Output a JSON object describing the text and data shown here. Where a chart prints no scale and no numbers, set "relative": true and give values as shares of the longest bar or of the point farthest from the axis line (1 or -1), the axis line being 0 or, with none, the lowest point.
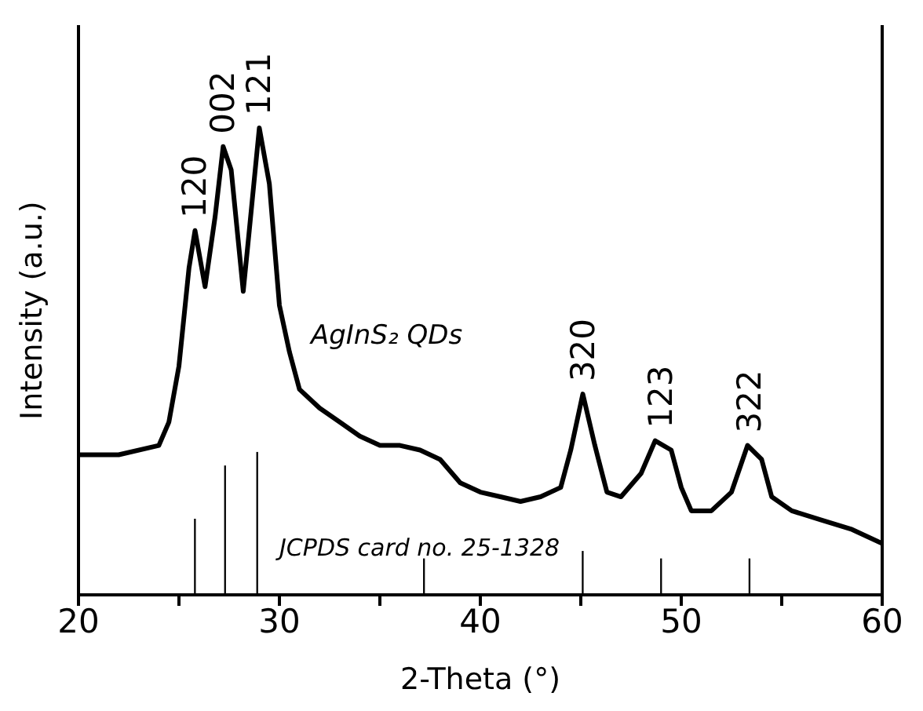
{
  "chart_data": {
    "type": "line",
    "relative": true,
    "xlabel": "2-Theta (°)",
    "ylabel": "Intensity (a.u.)",
    "xlim": [
      20,
      60
    ],
    "xticks": [
      20,
      {
        "value": 25,
        "label": null
      },
      30,
      {
        "value": 35,
        "label": null
      },
      40,
      {
        "value": 45,
        "label": null
      },
      50,
      {
        "value": 55,
        "label": null
      },
      60
    ],
    "tick_labels": "x",
    "series": [
      {
        "name": "AgInS₂ QDs",
        "color": "#000000",
        "x": [
          20,
          22,
          24,
          24.5,
          25,
          25.5,
          25.8,
          26.3,
          26.8,
          27.2,
          27.6,
          28.2,
          28.5,
          29,
          29.5,
          30,
          30.5,
          31,
          32,
          33,
          34,
          35,
          36,
          37,
          38,
          39,
          40,
          41,
          42,
          43,
          44,
          44.5,
          45.1,
          45.7,
          46.3,
          47,
          48,
          48.7,
          49.5,
          50,
          50.5,
          51.5,
          52.5,
          53.3,
          54,
          54.5,
          55.5,
          57,
          58.5,
          60
        ],
        "values": [
          0.3,
          0.3,
          0.32,
          0.37,
          0.49,
          0.7,
          0.78,
          0.66,
          0.81,
          0.96,
          0.91,
          0.65,
          0.78,
          1.0,
          0.88,
          0.62,
          0.52,
          0.44,
          0.4,
          0.37,
          0.34,
          0.32,
          0.32,
          0.31,
          0.29,
          0.24,
          0.22,
          0.21,
          0.2,
          0.21,
          0.23,
          0.31,
          0.43,
          0.32,
          0.22,
          0.21,
          0.26,
          0.33,
          0.31,
          0.23,
          0.18,
          0.18,
          0.22,
          0.32,
          0.29,
          0.21,
          0.18,
          0.16,
          0.14,
          0.11
        ]
      },
      {
        "name": "JCPDS card no. 25-1328",
        "type": "bar",
        "color": "#000000",
        "x": [
          25.8,
          27.3,
          28.9,
          37.2,
          45.1,
          49.0,
          53.4
        ],
        "values": [
          0.163,
          0.277,
          0.306,
          0.078,
          0.094,
          0.078,
          0.078
        ]
      }
    ],
    "annotations": [
      {
        "text": "120",
        "x": 25.8,
        "y": 0.78
      },
      {
        "text": "002",
        "x": 27.2,
        "y": 0.96
      },
      {
        "text": "121",
        "x": 29,
        "y": 1.0
      },
      {
        "text": "320",
        "x": 45.1,
        "y": 0.43
      },
      {
        "text": "123",
        "x": 49,
        "y": 0.33
      },
      {
        "text": "322",
        "x": 53.4,
        "y": 0.32
      }
    ]
  }
}
